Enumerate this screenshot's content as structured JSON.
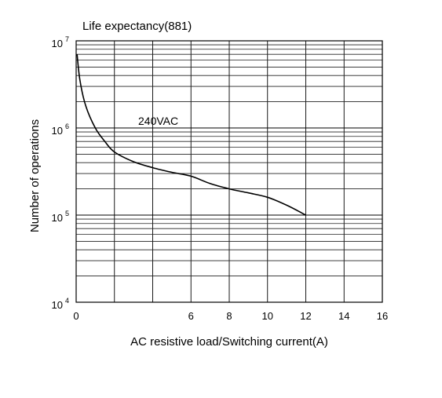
{
  "chart_data": {
    "type": "line",
    "title": "Life expectancy(881)",
    "xlabel": "AC resistive load/Switching current(A)",
    "ylabel": "Number of operations",
    "xlim": [
      0,
      16
    ],
    "ylim": [
      10000,
      10000000
    ],
    "yscale": "log",
    "grid": true,
    "x_ticks": [
      "0",
      "6",
      "8",
      "10",
      "12",
      "14",
      "16"
    ],
    "y_ticks": [
      {
        "base": "10",
        "exp": "7"
      },
      {
        "base": "10",
        "exp": "6"
      },
      {
        "base": "10",
        "exp": "5"
      },
      {
        "base": "10",
        "exp": "4"
      }
    ],
    "annotations": [
      "240VAC"
    ],
    "series": [
      {
        "x": [
          0.05,
          0.2,
          0.5,
          1,
          1.5,
          2,
          3,
          4,
          5,
          6,
          7,
          8,
          9,
          10,
          11,
          12
        ],
        "y": [
          7000000,
          3500000,
          1800000,
          1000000,
          700000,
          530000,
          410000,
          350000,
          310000,
          280000,
          230000,
          200000,
          180000,
          160000,
          130000,
          100000
        ]
      }
    ]
  }
}
